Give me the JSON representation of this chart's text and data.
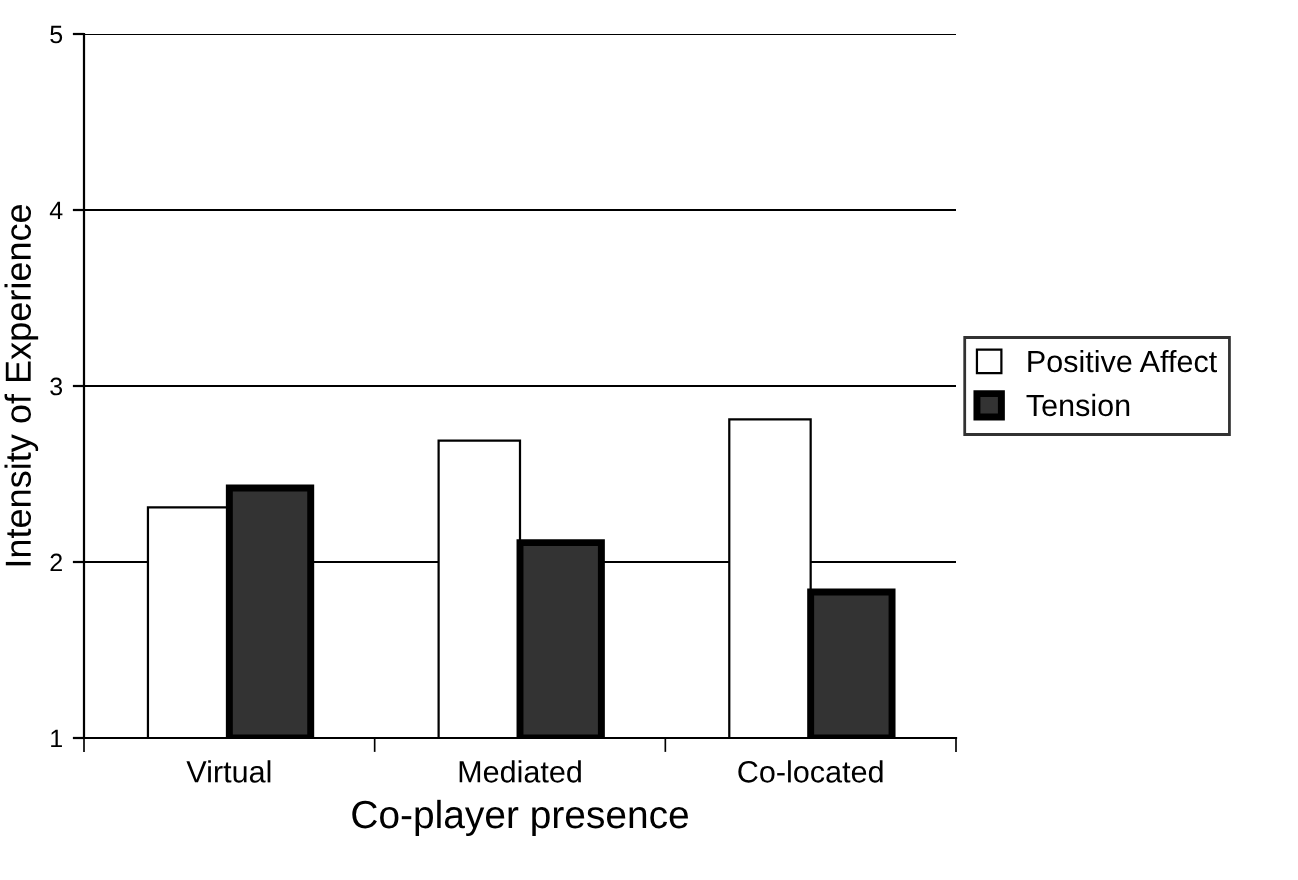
{
  "chart_data": {
    "type": "bar",
    "xlabel": "Co-player presence",
    "ylabel": "Intensity of Experience",
    "categories": [
      "Virtual",
      "Mediated",
      "Co-located"
    ],
    "series": [
      {
        "name": "Positive Affect",
        "color": "#ffffff",
        "values": [
          2.31,
          2.69,
          2.81
        ]
      },
      {
        "name": "Tension",
        "color": "#333333",
        "values": [
          2.42,
          2.11,
          1.83
        ]
      }
    ],
    "ylim": [
      1,
      5
    ],
    "yticks": [
      1,
      2,
      3,
      4,
      5
    ],
    "grid": "y",
    "legend": "right"
  }
}
